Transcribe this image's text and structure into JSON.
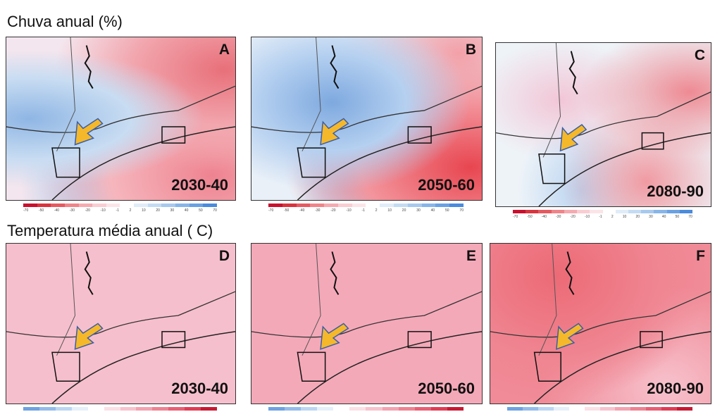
{
  "sections": [
    {
      "title": "Chuva anual (%)",
      "panels": [
        {
          "letter": "A",
          "period": "2030-40"
        },
        {
          "letter": "B",
          "period": "2050-60"
        },
        {
          "letter": "C",
          "period": "2080-90"
        }
      ],
      "colorbar_labels": [
        "-70",
        "-50",
        "-40",
        "-30",
        "-20",
        "-10",
        "-1",
        "2",
        "10",
        "20",
        "30",
        "40",
        "50",
        "70"
      ]
    },
    {
      "title": "Temperatura média anual  ( C)",
      "panels": [
        {
          "letter": "D",
          "period": "2030-40"
        },
        {
          "letter": "E",
          "period": "2050-60"
        },
        {
          "letter": "F",
          "period": "2080-90"
        }
      ]
    }
  ]
}
